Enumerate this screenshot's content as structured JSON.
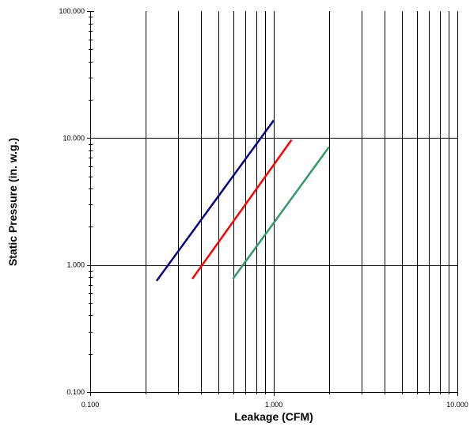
{
  "chart_data": {
    "type": "line",
    "title": "",
    "xlabel": "Leakage (CFM)",
    "ylabel": "Static Pressure (in. w.g.)",
    "xscale": "log",
    "yscale": "log",
    "xlim": [
      0.1,
      10
    ],
    "ylim": [
      0.1,
      100
    ],
    "xticks": [
      {
        "value": 0.1,
        "label": "0.100"
      },
      {
        "value": 1,
        "label": "1.000"
      },
      {
        "value": 10,
        "label": "10.000"
      }
    ],
    "yticks": [
      {
        "value": 100,
        "label": "100.000"
      },
      {
        "value": 10,
        "label": "10.000"
      },
      {
        "value": 1,
        "label": "1.000"
      },
      {
        "value": 0.1,
        "label": "0.100"
      }
    ],
    "grid": {
      "vertical_minor": true,
      "horizontal_major": true
    },
    "legend": "none",
    "series": [
      {
        "color": "#000080",
        "points": [
          [
            0.23,
            0.75
          ],
          [
            1.0,
            13.8
          ]
        ]
      },
      {
        "color": "#ff0000",
        "points": [
          [
            0.36,
            0.78
          ],
          [
            1.25,
            9.7
          ]
        ]
      },
      {
        "color": "#339966",
        "points": [
          [
            0.6,
            0.78
          ],
          [
            2.0,
            8.5
          ]
        ]
      }
    ]
  }
}
